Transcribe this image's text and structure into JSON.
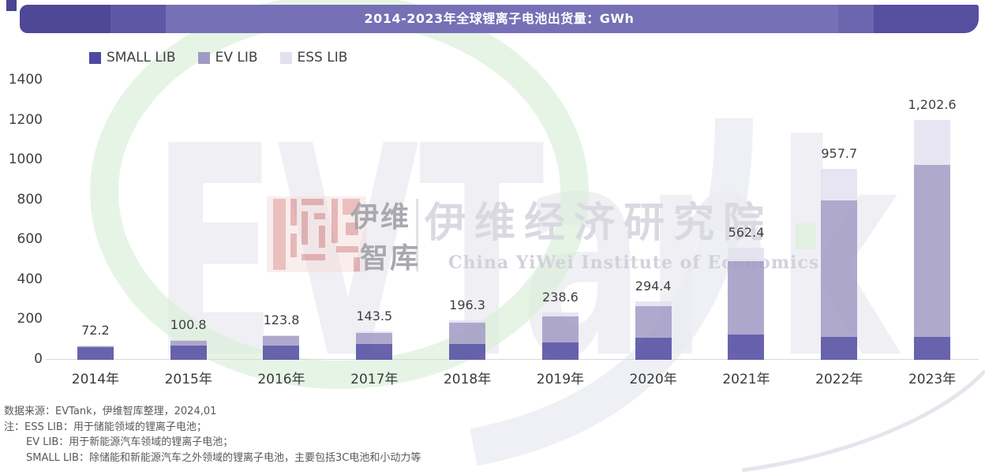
{
  "banner": {
    "title": "2014-2023年全球锂离子电池出货量：GWh"
  },
  "chart_data": {
    "type": "bar",
    "stacked": true,
    "title": "2014-2023年全球锂离子电池出货量：GWh",
    "unit": "GWh",
    "categories": [
      "2014年",
      "2015年",
      "2016年",
      "2017年",
      "2018年",
      "2019年",
      "2020年",
      "2021年",
      "2022年",
      "2023年"
    ],
    "series": [
      {
        "name": "SMALL LIB",
        "color": "#4F48A0",
        "values": [
          63.2,
          72.0,
          70.0,
          79.0,
          80.0,
          89.0,
          108.9,
          125.1,
          114.2,
          113.2
        ]
      },
      {
        "name": "EV LIB",
        "color": "#A19AC4",
        "values": [
          7.0,
          25.8,
          50.8,
          56.5,
          105.0,
          129.0,
          158.2,
          371.0,
          684.2,
          865.2
        ]
      },
      {
        "name": "ESS LIB",
        "color": "#E3E0EF",
        "values": [
          2.0,
          3.0,
          3.0,
          8.0,
          11.3,
          20.6,
          27.3,
          66.3,
          159.3,
          224.2
        ]
      }
    ],
    "totals": [
      72.2,
      100.8,
      123.8,
      143.5,
      196.3,
      238.6,
      294.4,
      562.4,
      957.7,
      1202.6
    ],
    "total_labels": [
      "72.2",
      "100.8",
      "123.8",
      "143.5",
      "196.3",
      "238.6",
      "294.4",
      "562.4",
      "957.7",
      "1,202.6"
    ],
    "ylim": [
      0,
      1400
    ],
    "yticks": [
      0,
      200,
      400,
      600,
      800,
      1000,
      1200,
      1400
    ],
    "legend_position": "top-left",
    "grid": false
  },
  "footer": {
    "source": "数据来源：EVTank，伊维智库整理，2024,01",
    "note_line1": "注：ESS LIB：用于储能领域的锂离子电池；",
    "note_line2": "EV LIB：用于新能源汽车领域的锂离子电池；",
    "note_line3": "SMALL LIB：除储能和新能源汽车之外领域的锂离子电池，主要包括3C电池和小动力等"
  },
  "watermark": {
    "brand": "EVTank",
    "logo_line1": "伊维",
    "logo_line2": "智库",
    "institute_cn": "伊维经济研究院",
    "institute_en": "China YiWei Institute of Economics"
  }
}
